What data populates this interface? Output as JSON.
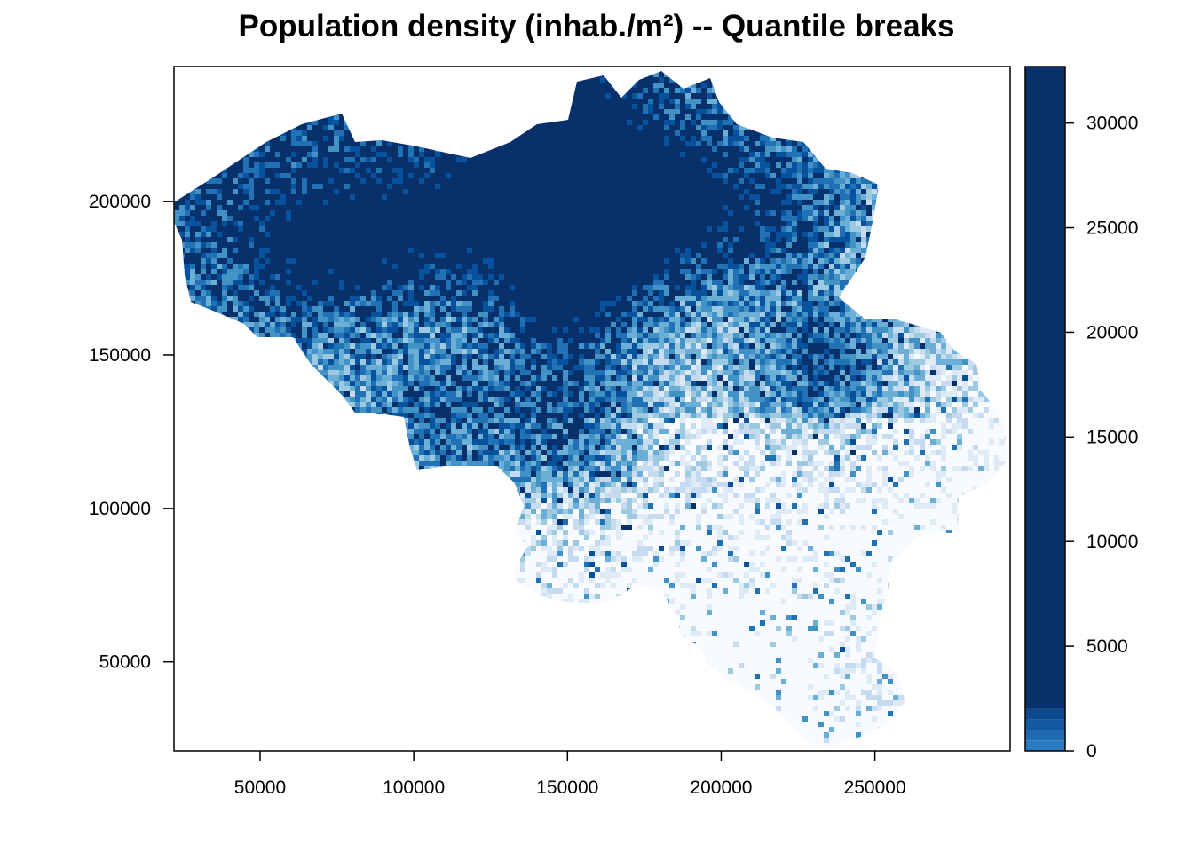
{
  "title": "Population density (inhab./m²) -- Quantile breaks",
  "map": {
    "region": "Belgium",
    "palette_ramp": [
      "#f7fbff",
      "#deebf7",
      "#c6dbef",
      "#9ecae1",
      "#6baed6",
      "#4292c6",
      "#2171b5",
      "#08519c",
      "#08306b"
    ],
    "axes": {
      "x": {
        "range": [
          22000,
          294000
        ],
        "ticks": [
          50000,
          100000,
          150000,
          200000,
          250000
        ],
        "tick_labels": [
          "50000",
          "100000",
          "150000",
          "200000",
          "250000"
        ]
      },
      "y": {
        "range": [
          21000,
          244000
        ],
        "ticks": [
          50000,
          100000,
          150000,
          200000
        ],
        "tick_labels": [
          "50000",
          "100000",
          "150000",
          "200000"
        ]
      }
    }
  },
  "legend": {
    "range": [
      0,
      32700
    ],
    "ticks": [
      0,
      5000,
      10000,
      15000,
      20000,
      25000,
      30000
    ],
    "tick_labels": [
      "0",
      "5000",
      "10000",
      "15000",
      "20000",
      "25000",
      "30000"
    ],
    "classes": [
      {
        "from": 0,
        "to": 500,
        "color": "#2c7bc0"
      },
      {
        "from": 500,
        "to": 1000,
        "color": "#1f6bb0"
      },
      {
        "from": 1000,
        "to": 1500,
        "color": "#135aa0"
      },
      {
        "from": 1500,
        "to": 2000,
        "color": "#0c4a8f"
      },
      {
        "from": 2000,
        "to": 32700,
        "color": "#08306b"
      }
    ]
  }
}
